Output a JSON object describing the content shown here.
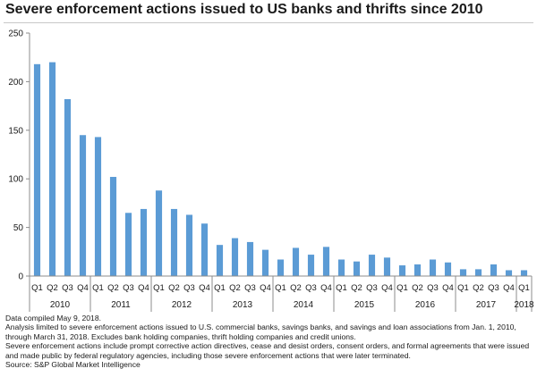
{
  "title": "Severe enforcement actions issued to US banks and thrifts since 2010",
  "notes": [
    "Data compiled May 9, 2018.",
    "Analysis limited to severe enforcement actions issued to U.S. commercial banks, savings banks, and savings and loan associations from Jan. 1, 2010, through March 31, 2018. Excludes bank holding companies, thrift holding companies and credit unions.",
    "Severe enforcement actions include prompt corrective action directives, cease and desist orders, consent orders, and formal agreements that were issued and made public by federal regulatory agencies, including those severe enforcement actions that were later terminated.",
    "Source: S&P Global Market Intelligence"
  ],
  "colors": {
    "bar": "#5b9bd5",
    "axis": "#8c8c8c",
    "grid": "#d9d9d9"
  },
  "chart_data": {
    "type": "bar",
    "title": "Severe enforcement actions issued to US banks and thrifts since 2010",
    "xlabel": "",
    "ylabel": "",
    "ylim": [
      0,
      250
    ],
    "yticks": [
      0,
      50,
      100,
      150,
      200,
      250
    ],
    "grid": false,
    "legend": "none",
    "categories": [
      "Q1",
      "Q2",
      "Q3",
      "Q4",
      "Q1",
      "Q2",
      "Q3",
      "Q4",
      "Q1",
      "Q2",
      "Q3",
      "Q4",
      "Q1",
      "Q2",
      "Q3",
      "Q4",
      "Q1",
      "Q2",
      "Q3",
      "Q4",
      "Q1",
      "Q2",
      "Q3",
      "Q4",
      "Q1",
      "Q2",
      "Q3",
      "Q4",
      "Q1",
      "Q2",
      "Q3",
      "Q4",
      "Q1"
    ],
    "years": [
      {
        "label": "2010",
        "quarters": 4
      },
      {
        "label": "2011",
        "quarters": 4
      },
      {
        "label": "2012",
        "quarters": 4
      },
      {
        "label": "2013",
        "quarters": 4
      },
      {
        "label": "2014",
        "quarters": 4
      },
      {
        "label": "2015",
        "quarters": 4
      },
      {
        "label": "2016",
        "quarters": 4
      },
      {
        "label": "2017",
        "quarters": 4
      },
      {
        "label": "2018",
        "quarters": 1
      }
    ],
    "values": [
      218,
      220,
      182,
      145,
      143,
      102,
      65,
      69,
      88,
      69,
      63,
      54,
      32,
      39,
      35,
      27,
      17,
      29,
      22,
      30,
      17,
      15,
      22,
      19,
      11,
      12,
      17,
      14,
      7,
      7,
      12,
      6,
      6
    ]
  }
}
